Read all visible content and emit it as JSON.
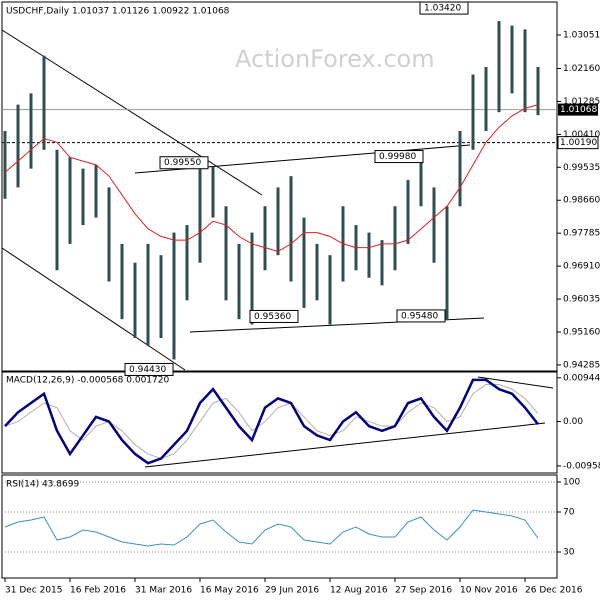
{
  "chart_data": {
    "type": "ohlc",
    "title": "USDCHF,Daily 1.01037 1.01126 1.00922 1.01068",
    "watermark": "ActionForex.com",
    "categories": [
      "31 Dec 2015",
      null,
      null,
      null,
      null,
      "16 Feb 2016",
      null,
      null,
      null,
      null,
      "31 Mar 2016",
      null,
      null,
      null,
      null,
      "16 May 2016",
      null,
      null,
      null,
      null,
      "29 Jun 2016",
      null,
      null,
      null,
      null,
      "12 Aug 2016",
      null,
      null,
      null,
      null,
      "27 Sep 2016",
      null,
      null,
      null,
      null,
      "10 Nov 2016",
      null,
      null,
      null,
      null,
      "26 Dec 2016",
      null
    ],
    "high": [
      1.005,
      1.012,
      1.015,
      1.025,
      1.0,
      0.998,
      0.995,
      0.996,
      0.99,
      0.975,
      0.97,
      0.975,
      0.972,
      0.978,
      0.98,
      0.995,
      0.9955,
      0.985,
      0.975,
      0.978,
      0.985,
      0.99,
      0.993,
      0.982,
      0.975,
      0.972,
      0.985,
      0.98,
      0.978,
      0.976,
      0.985,
      0.992,
      0.9998,
      0.99,
      0.985,
      1.005,
      1.02,
      1.022,
      1.0342,
      1.033,
      1.032,
      1.022
    ],
    "low": [
      0.987,
      0.99,
      0.995,
      1.0,
      0.968,
      0.975,
      0.98,
      0.982,
      0.965,
      0.955,
      0.95,
      0.948,
      0.95,
      0.9443,
      0.96,
      0.97,
      0.982,
      0.96,
      0.955,
      0.9536,
      0.968,
      0.972,
      0.965,
      0.958,
      0.96,
      0.9536,
      0.965,
      0.968,
      0.966,
      0.964,
      0.968,
      0.975,
      0.985,
      0.97,
      0.9548,
      0.985,
      1.0,
      1.005,
      1.01,
      1.015,
      1.01,
      1.0092
    ],
    "color": "#2f4f4f",
    "ma": {
      "color": "#e02020",
      "values": [
        0.994,
        0.997,
        1.0,
        1.003,
        1.002,
        0.998,
        0.997,
        0.996,
        0.993,
        0.988,
        0.983,
        0.979,
        0.977,
        0.976,
        0.976,
        0.978,
        0.981,
        0.98,
        0.977,
        0.975,
        0.974,
        0.973,
        0.975,
        0.978,
        0.978,
        0.977,
        0.975,
        0.974,
        0.974,
        0.975,
        0.975,
        0.976,
        0.979,
        0.982,
        0.985,
        0.99,
        0.996,
        1.002,
        1.006,
        1.009,
        1.011,
        1.012
      ]
    },
    "ylim": [
      0.9415,
      1.039
    ],
    "yticks": [
      1.03051,
      {
        "value": 1.0216,
        "label": "1.02160"
      },
      1.01285,
      {
        "value": 1.0041,
        "label": "1.00410"
      },
      0.99535,
      {
        "value": 0.9866,
        "label": "0.98660"
      },
      0.97785,
      {
        "value": 0.9691,
        "label": "0.96910"
      },
      0.96035,
      {
        "value": 0.9516,
        "label": "0.95160"
      },
      0.94285
    ],
    "current": {
      "value": 1.01068,
      "label": "1.01068"
    },
    "level": {
      "value": 1.0019,
      "label": "1.00190"
    },
    "annotations": [
      {
        "value": 1.0342,
        "label": "1.03420"
      },
      {
        "value": 0.9955,
        "label": "0.99550"
      },
      {
        "value": 0.9998,
        "label": "0.99980"
      },
      {
        "value": 0.9536,
        "label": "0.95360"
      },
      {
        "value": 0.9548,
        "label": "0.95480"
      },
      {
        "value": 0.9443,
        "label": "0.94430"
      }
    ],
    "macd": {
      "title": "MACD(12,26,9) -0.000568 0.001720",
      "macd": {
        "color": "#000080",
        "values": [
          -0.001,
          0.002,
          0.004,
          0.006,
          -0.002,
          -0.007,
          -0.003,
          0.001,
          0.0,
          -0.004,
          -0.007,
          -0.009,
          -0.008,
          -0.005,
          -0.002,
          0.004,
          0.007,
          0.003,
          -0.001,
          -0.004,
          0.003,
          0.005,
          0.004,
          -0.001,
          -0.003,
          -0.004,
          0.0,
          0.002,
          -0.001,
          -0.002,
          -0.001,
          0.004,
          0.005,
          0.001,
          -0.002,
          0.003,
          0.009,
          0.009,
          0.007,
          0.006,
          0.003,
          -0.000568
        ]
      },
      "signal": {
        "color": "#b0b0b0",
        "values": [
          -0.001,
          0.0,
          0.002,
          0.004,
          0.003,
          -0.002,
          -0.004,
          -0.001,
          0.0,
          -0.002,
          -0.005,
          -0.007,
          -0.008,
          -0.007,
          -0.004,
          0.0,
          0.004,
          0.005,
          0.002,
          -0.002,
          0.0,
          0.003,
          0.004,
          0.001,
          -0.002,
          -0.003,
          -0.002,
          0.001,
          0.0,
          -0.001,
          -0.001,
          0.002,
          0.004,
          0.003,
          0.0,
          0.001,
          0.006,
          0.008,
          0.008,
          0.007,
          0.005,
          0.00172
        ]
      },
      "ylim": [
        -0.0109,
        0.0107
      ],
      "yticks": [
        0.009446,
        {
          "value": 0,
          "label": "0.00"
        },
        -0.009588
      ]
    },
    "rsi": {
      "title": "RSI(14) 43.8699",
      "color": "#3c8fc8",
      "values": [
        55,
        60,
        62,
        65,
        42,
        45,
        52,
        50,
        45,
        40,
        38,
        36,
        38,
        37,
        45,
        58,
        62,
        50,
        40,
        38,
        52,
        58,
        55,
        42,
        40,
        38,
        50,
        55,
        48,
        45,
        45,
        60,
        65,
        52,
        42,
        55,
        72,
        70,
        68,
        66,
        62,
        43.8699
      ],
      "ylim": [
        4,
        107
      ],
      "yticks": [
        100,
        70,
        30
      ]
    }
  }
}
